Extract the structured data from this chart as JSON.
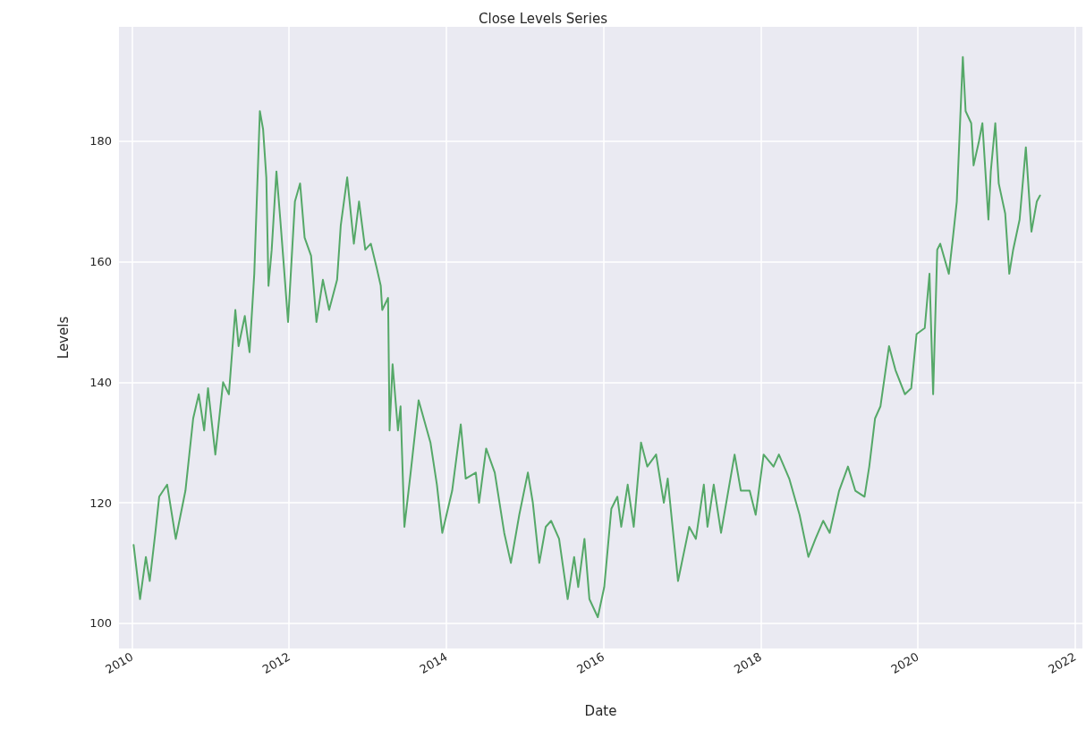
{
  "chart_data": {
    "type": "line",
    "title": "Close Levels Series",
    "xlabel": "Date",
    "ylabel": "Levels",
    "x": [
      "2010-01-08",
      "2010-02-07",
      "2010-03-06",
      "2010-03-24",
      "2010-04-19",
      "2010-05-07",
      "2010-06-13",
      "2010-07-23",
      "2010-09-06",
      "2010-10-12",
      "2010-11-07",
      "2010-12-02",
      "2010-12-20",
      "2011-01-23",
      "2011-02-28",
      "2011-03-27",
      "2011-04-26",
      "2011-05-11",
      "2011-06-09",
      "2011-07-01",
      "2011-07-23",
      "2011-08-18",
      "2011-09-02",
      "2011-09-17",
      "2011-09-27",
      "2011-10-12",
      "2011-11-03",
      "2011-11-21",
      "2011-12-06",
      "2011-12-27",
      "2012-01-12",
      "2012-01-28",
      "2012-02-21",
      "2012-03-13",
      "2012-04-12",
      "2012-05-07",
      "2012-06-06",
      "2012-07-05",
      "2012-08-11",
      "2012-08-28",
      "2012-09-27",
      "2012-10-28",
      "2012-11-21",
      "2012-12-20",
      "2013-01-15",
      "2013-02-11",
      "2013-03-02",
      "2013-03-09",
      "2013-04-05",
      "2013-04-12",
      "2013-04-26",
      "2013-05-21",
      "2013-06-02",
      "2013-06-20",
      "2013-07-19",
      "2013-08-25",
      "2013-10-19",
      "2013-11-18",
      "2013-12-13",
      "2014-01-28",
      "2014-03-09",
      "2014-04-01",
      "2014-05-18",
      "2014-06-02",
      "2014-07-05",
      "2014-08-14",
      "2014-09-27",
      "2014-10-28",
      "2014-12-06",
      "2015-01-15",
      "2015-02-07",
      "2015-03-09",
      "2015-04-08",
      "2015-05-03",
      "2015-06-09",
      "2015-07-19",
      "2015-08-18",
      "2015-09-06",
      "2015-10-05",
      "2015-10-28",
      "2015-12-06",
      "2016-01-05",
      "2016-02-07",
      "2016-03-06",
      "2016-03-24",
      "2016-04-23",
      "2016-05-21",
      "2016-06-24",
      "2016-07-23",
      "2016-09-02",
      "2016-10-08",
      "2016-10-26",
      "2016-12-13",
      "2017-02-03",
      "2017-03-06",
      "2017-04-12",
      "2017-04-29",
      "2017-05-28",
      "2017-07-01",
      "2017-09-02",
      "2017-10-01",
      "2017-11-11",
      "2017-12-09",
      "2018-01-15",
      "2018-03-02",
      "2018-03-27",
      "2018-05-14",
      "2018-07-01",
      "2018-08-11",
      "2018-09-13",
      "2018-10-19",
      "2018-11-18",
      "2019-01-01",
      "2019-02-11",
      "2019-03-17",
      "2019-04-29",
      "2019-05-21",
      "2019-06-17",
      "2019-07-12",
      "2019-08-21",
      "2019-09-20",
      "2019-11-03",
      "2019-12-02",
      "2019-12-27",
      "2020-02-03",
      "2020-02-25",
      "2020-03-13",
      "2020-04-01",
      "2020-04-15",
      "2020-05-25",
      "2020-06-13",
      "2020-07-01",
      "2020-07-15",
      "2020-07-29",
      "2020-08-11",
      "2020-09-06",
      "2020-09-17",
      "2020-10-12",
      "2020-10-28",
      "2020-11-25",
      "2020-12-06",
      "2020-12-27",
      "2021-01-12",
      "2021-02-11",
      "2021-03-02",
      "2021-03-20",
      "2021-04-19",
      "2021-05-18",
      "2021-06-13",
      "2021-07-08",
      "2021-07-23"
    ],
    "series": [
      {
        "color": "#55a868",
        "values": [
          113,
          104,
          111,
          107,
          115,
          121,
          123,
          114,
          122,
          134,
          138,
          132,
          139,
          128,
          140,
          138,
          152,
          146,
          151,
          145,
          158,
          185,
          182,
          174,
          156,
          162,
          175,
          167,
          160,
          150,
          160,
          170,
          173,
          164,
          161,
          150,
          157,
          152,
          157,
          166,
          174,
          163,
          170,
          162,
          163,
          159,
          156,
          152,
          154,
          132,
          143,
          132,
          136,
          116,
          125,
          137,
          130,
          123,
          115,
          122,
          133,
          124,
          125,
          120,
          129,
          125,
          115,
          110,
          118,
          125,
          120,
          110,
          116,
          117,
          114,
          104,
          111,
          106,
          114,
          104,
          101,
          106,
          119,
          121,
          116,
          123,
          116,
          130,
          126,
          128,
          120,
          124,
          107,
          116,
          114,
          123,
          116,
          123,
          115,
          128,
          122,
          122,
          118,
          128,
          126,
          128,
          124,
          118,
          111,
          114,
          117,
          115,
          122,
          126,
          122,
          121,
          126,
          134,
          136,
          146,
          142,
          138,
          139,
          148,
          149,
          158,
          138,
          162,
          163,
          158,
          164,
          170,
          182,
          194,
          185,
          183,
          176,
          180,
          183,
          167,
          175,
          183,
          173,
          168,
          158,
          162,
          167,
          179,
          165,
          170,
          171
        ]
      }
    ],
    "xlim": [
      "2009-11-01",
      "2022-02-05"
    ],
    "xticks": [
      {
        "value": "2010-01-01",
        "label": "2010"
      },
      {
        "value": "2012-01-01",
        "label": "2012"
      },
      {
        "value": "2014-01-01",
        "label": "2014"
      },
      {
        "value": "2016-01-01",
        "label": "2016"
      },
      {
        "value": "2018-01-01",
        "label": "2018"
      },
      {
        "value": "2020-01-01",
        "label": "2020"
      },
      {
        "value": "2022-01-01",
        "label": "2022"
      }
    ],
    "ylim": [
      95.8,
      199
    ],
    "yticks": [
      100,
      120,
      140,
      160,
      180
    ],
    "grid": true,
    "marker": "none",
    "line_style": "solid"
  }
}
